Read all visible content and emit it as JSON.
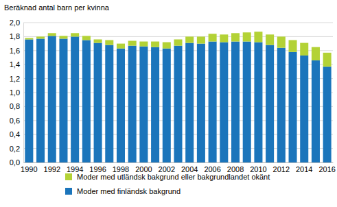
{
  "chart_data": {
    "type": "bar",
    "stacked": true,
    "grid": true,
    "legend": "bottom",
    "y_label": "Beräknad antal barn per kvinna",
    "categories": [
      "1990",
      null,
      "1992",
      null,
      "1994",
      null,
      "1996",
      null,
      "1998",
      null,
      "2000",
      null,
      "2002",
      null,
      "2004",
      null,
      "2006",
      null,
      "2008",
      null,
      "2010",
      null,
      "2012",
      null,
      "2014",
      null,
      "2016"
    ],
    "series": [
      {
        "name": "Moder med finländsk bakgrund",
        "color": "#1b75bb",
        "values": [
          1.76,
          1.77,
          1.81,
          1.77,
          1.8,
          1.75,
          1.71,
          1.68,
          1.63,
          1.67,
          1.66,
          1.65,
          1.63,
          1.67,
          1.71,
          1.7,
          1.73,
          1.72,
          1.73,
          1.73,
          1.72,
          1.68,
          1.64,
          1.58,
          1.53,
          1.46,
          1.37
        ]
      },
      {
        "name": "Moder med utländsk bakgrund eller bakgrundlandet okänt",
        "color": "#b3d236",
        "values": [
          0.02,
          0.03,
          0.04,
          0.04,
          0.05,
          0.06,
          0.05,
          0.07,
          0.07,
          0.07,
          0.07,
          0.08,
          0.09,
          0.09,
          0.09,
          0.1,
          0.11,
          0.11,
          0.12,
          0.13,
          0.15,
          0.15,
          0.16,
          0.17,
          0.18,
          0.19,
          0.2
        ]
      }
    ],
    "ylim": [
      0,
      2.0
    ],
    "yticks": [
      {
        "value": 0,
        "label": "0,0"
      },
      {
        "value": 0.2,
        "label": "0,2"
      },
      {
        "value": 0.4,
        "label": "0,4"
      },
      {
        "value": 0.6,
        "label": "0,6"
      },
      {
        "value": 0.8,
        "label": "0,8"
      },
      {
        "value": 1.0,
        "label": "1,0"
      },
      {
        "value": 1.2,
        "label": "1,2"
      },
      {
        "value": 1.4,
        "label": "1,4"
      },
      {
        "value": 1.6,
        "label": "1,6"
      },
      {
        "value": 1.8,
        "label": "1,8"
      },
      {
        "value": 2.0,
        "label": "2,0"
      }
    ]
  }
}
